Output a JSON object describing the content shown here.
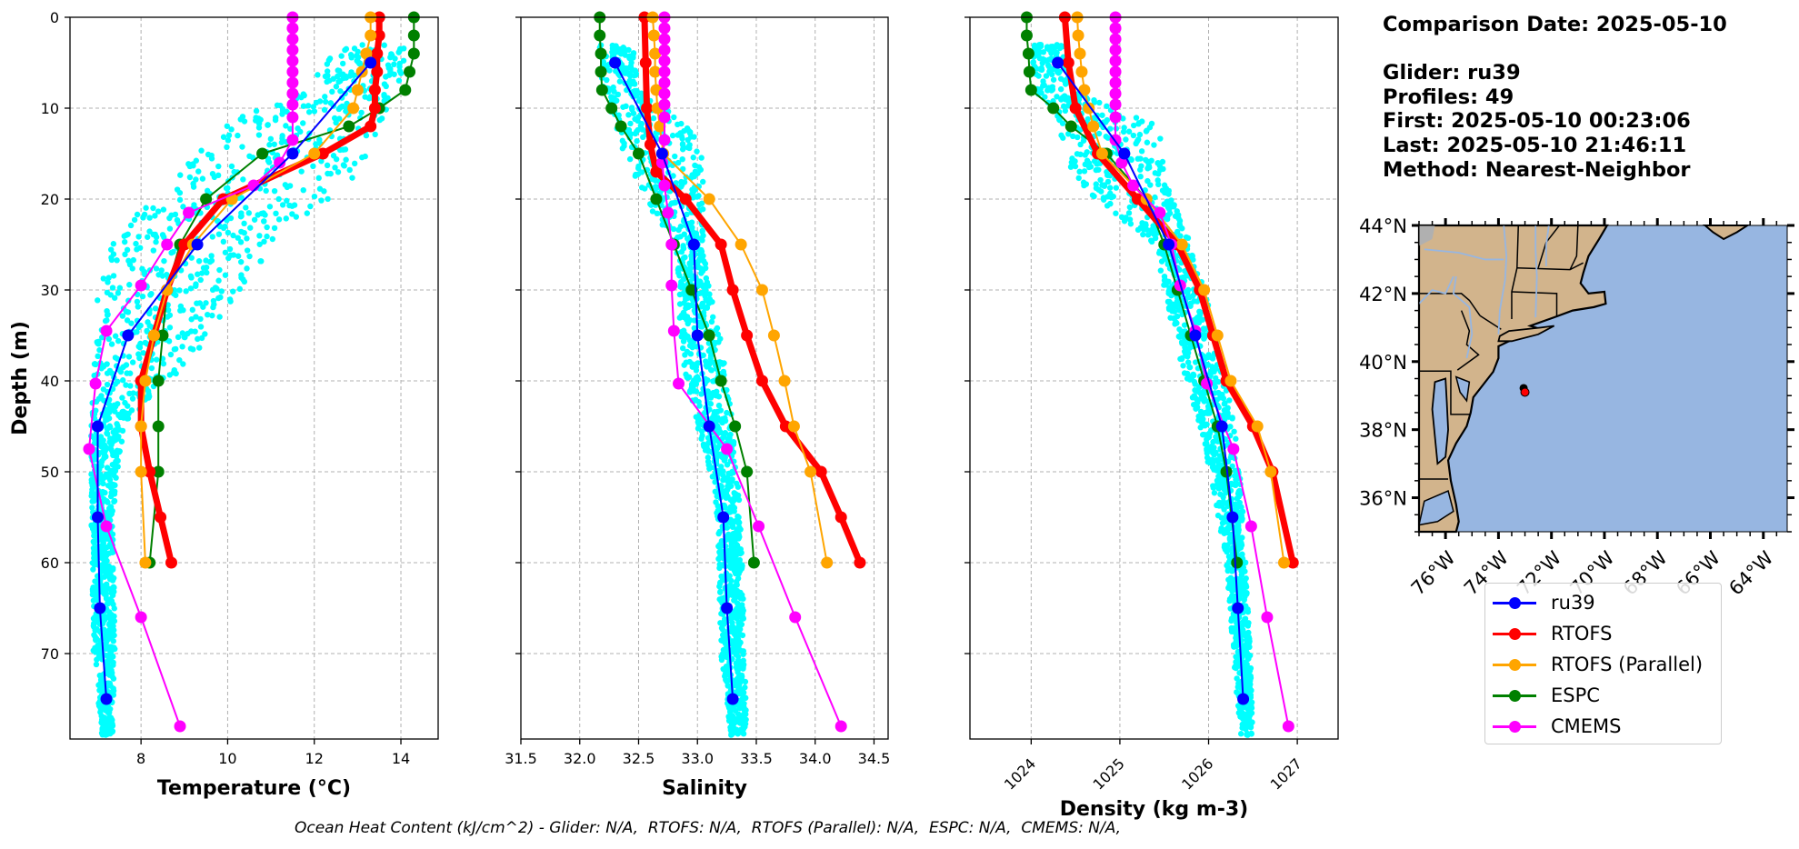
{
  "info": {
    "comparison_date": "Comparison Date: 2025-05-10",
    "glider": "Glider: ru39",
    "profiles": "Profiles: 49",
    "first": "First: 2025-05-10 00:23:06",
    "last": "Last: 2025-05-10 21:46:11",
    "method": "Method: Nearest-Neighbor"
  },
  "footer": "Ocean Heat Content (kJ/cm^2) - Glider: N/A,  RTOFS: N/A,  RTOFS (Parallel): N/A,  ESPC: N/A,  CMEMS: N/A,",
  "legend": [
    {
      "name": "ru39",
      "color": "#0000ff"
    },
    {
      "name": "RTOFS",
      "color": "#ff0000"
    },
    {
      "name": "RTOFS (Parallel)",
      "color": "#ffa500"
    },
    {
      "name": "ESPC",
      "color": "#008000"
    },
    {
      "name": "CMEMS",
      "color": "#ff00ff"
    }
  ],
  "chart_data": [
    {
      "type": "line",
      "title": "",
      "xlabel": "Temperature (°C)",
      "ylabel": "Depth (m)",
      "xlim": [
        6.36,
        14.86
      ],
      "ylim": [
        79.4,
        0
      ],
      "xticks": [
        8,
        10,
        12,
        14
      ],
      "yticks": [
        0,
        10,
        20,
        30,
        40,
        50,
        60,
        70
      ],
      "grid": true,
      "glider_scatter": {
        "name": "ru39 profiles",
        "color": "#00ffff",
        "envelope": [
          {
            "depth": 3,
            "min": 12.6,
            "max": 14.2
          },
          {
            "depth": 8,
            "min": 11.8,
            "max": 13.9
          },
          {
            "depth": 11,
            "min": 10.2,
            "max": 13.6
          },
          {
            "depth": 14,
            "min": 9.5,
            "max": 13.4
          },
          {
            "depth": 18,
            "min": 8.7,
            "max": 13.0
          },
          {
            "depth": 22,
            "min": 7.8,
            "max": 11.7
          },
          {
            "depth": 26,
            "min": 7.2,
            "max": 11.0
          },
          {
            "depth": 30,
            "min": 7.0,
            "max": 10.4
          },
          {
            "depth": 35,
            "min": 6.95,
            "max": 9.6
          },
          {
            "depth": 40,
            "min": 6.9,
            "max": 8.7
          },
          {
            "depth": 45,
            "min": 6.85,
            "max": 7.6
          },
          {
            "depth": 55,
            "min": 6.85,
            "max": 7.35
          },
          {
            "depth": 70,
            "min": 6.9,
            "max": 7.4
          },
          {
            "depth": 79,
            "min": 7.1,
            "max": 7.35
          }
        ]
      },
      "series": [
        {
          "name": "ru39",
          "color": "#0000ff",
          "depth": [
            5,
            15,
            25,
            35,
            45,
            55,
            65,
            75
          ],
          "values": [
            13.3,
            11.5,
            9.3,
            7.7,
            7.0,
            7.0,
            7.05,
            7.2
          ]
        },
        {
          "name": "RTOFS",
          "color": "#ff0000",
          "depth": [
            0,
            2,
            4,
            6,
            8,
            10,
            12,
            15,
            20,
            25,
            30,
            35,
            40,
            45,
            50,
            55,
            60
          ],
          "values": [
            13.5,
            13.5,
            13.45,
            13.45,
            13.4,
            13.4,
            13.3,
            12.2,
            9.9,
            9.0,
            8.6,
            8.3,
            8.0,
            8.0,
            8.2,
            8.45,
            8.7
          ]
        },
        {
          "name": "RTOFS (Parallel)",
          "color": "#ffa500",
          "depth": [
            0,
            2,
            4,
            6,
            8,
            10,
            15,
            20,
            25,
            30,
            35,
            40,
            45,
            50,
            60
          ],
          "values": [
            13.3,
            13.3,
            13.2,
            13.1,
            13.0,
            12.9,
            12.0,
            10.1,
            9.2,
            8.6,
            8.3,
            8.1,
            8.0,
            8.0,
            8.1
          ]
        },
        {
          "name": "ESPC",
          "color": "#008000",
          "depth": [
            0,
            2,
            4,
            6,
            8,
            10,
            12,
            15,
            20,
            25,
            30,
            35,
            40,
            45,
            50,
            60
          ],
          "values": [
            14.3,
            14.3,
            14.3,
            14.2,
            14.1,
            13.5,
            12.8,
            10.8,
            9.5,
            8.9,
            8.6,
            8.5,
            8.4,
            8.4,
            8.4,
            8.2
          ]
        },
        {
          "name": "CMEMS",
          "color": "#ff00ff",
          "depth": [
            0,
            1.2,
            2.4,
            3.6,
            4.8,
            6,
            7.2,
            8.4,
            9.6,
            11,
            13.5,
            16,
            18.5,
            21.5,
            25,
            29.5,
            34.5,
            40.3,
            47.5,
            56,
            66,
            78
          ],
          "values": [
            11.5,
            11.5,
            11.5,
            11.5,
            11.5,
            11.5,
            11.5,
            11.5,
            11.5,
            11.5,
            11.5,
            11.2,
            10.6,
            9.1,
            8.6,
            8.0,
            7.2,
            6.95,
            6.8,
            7.2,
            8.0,
            8.9
          ]
        }
      ]
    },
    {
      "type": "line",
      "title": "",
      "xlabel": "Salinity",
      "ylabel": "",
      "xlim": [
        31.5,
        34.62
      ],
      "ylim": [
        79.4,
        0
      ],
      "xticks": [
        31.5,
        32.0,
        32.5,
        33.0,
        33.5,
        34.0,
        34.5
      ],
      "yticks": [
        0,
        10,
        20,
        30,
        40,
        50,
        60,
        70
      ],
      "grid": true,
      "glider_scatter": {
        "name": "ru39 profiles",
        "color": "#00ffff",
        "envelope": [
          {
            "depth": 3,
            "min": 32.15,
            "max": 32.45
          },
          {
            "depth": 8,
            "min": 32.2,
            "max": 32.5
          },
          {
            "depth": 12,
            "min": 32.3,
            "max": 32.95
          },
          {
            "depth": 16,
            "min": 32.4,
            "max": 33.05
          },
          {
            "depth": 20,
            "min": 32.55,
            "max": 33.05
          },
          {
            "depth": 25,
            "min": 32.8,
            "max": 33.05
          },
          {
            "depth": 30,
            "min": 32.85,
            "max": 33.1
          },
          {
            "depth": 35,
            "min": 32.85,
            "max": 33.2
          },
          {
            "depth": 40,
            "min": 32.9,
            "max": 33.25
          },
          {
            "depth": 45,
            "min": 33.0,
            "max": 33.3
          },
          {
            "depth": 52,
            "min": 33.15,
            "max": 33.35
          },
          {
            "depth": 60,
            "min": 33.18,
            "max": 33.38
          },
          {
            "depth": 70,
            "min": 33.2,
            "max": 33.4
          },
          {
            "depth": 79,
            "min": 33.28,
            "max": 33.42
          }
        ]
      },
      "series": [
        {
          "name": "ru39",
          "color": "#0000ff",
          "depth": [
            5,
            15,
            25,
            35,
            45,
            55,
            65,
            75
          ],
          "values": [
            32.3,
            32.7,
            32.97,
            33.0,
            33.1,
            33.22,
            33.25,
            33.3
          ]
        },
        {
          "name": "RTOFS",
          "color": "#ff0000",
          "depth": [
            0,
            5,
            10,
            14,
            17,
            20,
            25,
            30,
            35,
            40,
            45,
            50,
            55,
            60
          ],
          "values": [
            32.55,
            32.56,
            32.57,
            32.6,
            32.65,
            32.9,
            33.2,
            33.3,
            33.42,
            33.55,
            33.75,
            34.05,
            34.22,
            34.38
          ]
        },
        {
          "name": "RTOFS (Parallel)",
          "color": "#ffa500",
          "depth": [
            0,
            2,
            4,
            6,
            8,
            10,
            12,
            15,
            20,
            25,
            30,
            35,
            40,
            45,
            50,
            60
          ],
          "values": [
            32.62,
            32.63,
            32.64,
            32.64,
            32.65,
            32.66,
            32.68,
            32.71,
            33.1,
            33.37,
            33.55,
            33.65,
            33.74,
            33.82,
            33.96,
            34.1
          ]
        },
        {
          "name": "ESPC",
          "color": "#008000",
          "depth": [
            0,
            2,
            4,
            6,
            8,
            10,
            12,
            15,
            20,
            25,
            30,
            35,
            40,
            45,
            50,
            60
          ],
          "values": [
            32.17,
            32.17,
            32.18,
            32.18,
            32.19,
            32.27,
            32.35,
            32.5,
            32.65,
            32.8,
            32.95,
            33.1,
            33.2,
            33.32,
            33.42,
            33.48
          ]
        },
        {
          "name": "CMEMS",
          "color": "#ff00ff",
          "depth": [
            0,
            1.2,
            2.4,
            3.6,
            4.8,
            6,
            7.2,
            8.4,
            9.6,
            11,
            13.5,
            16,
            18.5,
            21.5,
            25,
            29.5,
            34.5,
            40.3,
            47.5,
            56,
            66,
            78
          ],
          "values": [
            32.72,
            32.72,
            32.72,
            32.72,
            32.72,
            32.72,
            32.72,
            32.72,
            32.72,
            32.72,
            32.72,
            32.7,
            32.72,
            32.75,
            32.78,
            32.78,
            32.8,
            32.84,
            33.25,
            33.52,
            33.83,
            34.22
          ]
        }
      ]
    },
    {
      "type": "line",
      "title": "",
      "xlabel": "Density (kg m-3)",
      "ylabel": "",
      "xlim": [
        1023.31,
        1027.46
      ],
      "ylim": [
        79.4,
        0
      ],
      "xticks": [
        1024,
        1025,
        1026,
        1027
      ],
      "yticks": [
        0,
        10,
        20,
        30,
        40,
        50,
        60,
        70
      ],
      "grid": true,
      "glider_scatter": {
        "name": "ru39 profiles",
        "color": "#00ffff",
        "envelope": [
          {
            "depth": 3,
            "min": 1024.0,
            "max": 1024.35
          },
          {
            "depth": 8,
            "min": 1024.05,
            "max": 1024.45
          },
          {
            "depth": 12,
            "min": 1024.3,
            "max": 1025.45
          },
          {
            "depth": 16,
            "min": 1024.4,
            "max": 1025.5
          },
          {
            "depth": 20,
            "min": 1024.7,
            "max": 1025.6
          },
          {
            "depth": 25,
            "min": 1025.4,
            "max": 1025.8
          },
          {
            "depth": 30,
            "min": 1025.5,
            "max": 1025.95
          },
          {
            "depth": 35,
            "min": 1025.6,
            "max": 1026.1
          },
          {
            "depth": 40,
            "min": 1025.75,
            "max": 1026.2
          },
          {
            "depth": 45,
            "min": 1025.9,
            "max": 1026.3
          },
          {
            "depth": 52,
            "min": 1026.05,
            "max": 1026.37
          },
          {
            "depth": 60,
            "min": 1026.2,
            "max": 1026.42
          },
          {
            "depth": 70,
            "min": 1026.28,
            "max": 1026.47
          },
          {
            "depth": 79,
            "min": 1026.35,
            "max": 1026.5
          }
        ]
      },
      "series": [
        {
          "name": "ru39",
          "color": "#0000ff",
          "depth": [
            5,
            15,
            25,
            35,
            45,
            55,
            65,
            75
          ],
          "values": [
            1024.3,
            1025.05,
            1025.55,
            1025.85,
            1026.15,
            1026.27,
            1026.33,
            1026.39
          ]
        },
        {
          "name": "RTOFS",
          "color": "#ff0000",
          "depth": [
            0,
            5,
            10,
            15,
            20,
            25,
            30,
            35,
            40,
            45,
            50,
            60
          ],
          "values": [
            1024.38,
            1024.42,
            1024.5,
            1024.75,
            1025.2,
            1025.65,
            1025.9,
            1026.05,
            1026.2,
            1026.5,
            1026.72,
            1026.95
          ]
        },
        {
          "name": "RTOFS (Parallel)",
          "color": "#ffa500",
          "depth": [
            0,
            2,
            4,
            6,
            8,
            10,
            12,
            15,
            20,
            25,
            30,
            35,
            40,
            45,
            50,
            60
          ],
          "values": [
            1024.52,
            1024.53,
            1024.55,
            1024.57,
            1024.6,
            1024.65,
            1024.7,
            1024.8,
            1025.3,
            1025.7,
            1025.95,
            1026.1,
            1026.25,
            1026.55,
            1026.7,
            1026.85
          ]
        },
        {
          "name": "ESPC",
          "color": "#008000",
          "depth": [
            0,
            2,
            4,
            6,
            8,
            10,
            12,
            15,
            20,
            25,
            30,
            35,
            40,
            45,
            50,
            60
          ],
          "values": [
            1023.95,
            1023.95,
            1023.97,
            1023.98,
            1024.0,
            1024.25,
            1024.45,
            1024.85,
            1025.3,
            1025.5,
            1025.65,
            1025.8,
            1025.95,
            1026.1,
            1026.2,
            1026.32
          ]
        },
        {
          "name": "CMEMS",
          "color": "#ff00ff",
          "depth": [
            0,
            1.2,
            2.4,
            3.6,
            4.8,
            6,
            7.2,
            8.4,
            9.6,
            11,
            13.5,
            16,
            18.5,
            21.5,
            25,
            29.5,
            34.5,
            40.3,
            47.5,
            56,
            66,
            78
          ],
          "values": [
            1024.95,
            1024.95,
            1024.95,
            1024.95,
            1024.95,
            1024.95,
            1024.95,
            1024.95,
            1024.95,
            1024.95,
            1024.95,
            1025.02,
            1025.15,
            1025.45,
            1025.58,
            1025.68,
            1025.85,
            1025.98,
            1026.28,
            1026.48,
            1026.66,
            1026.9
          ]
        }
      ]
    }
  ],
  "map": {
    "lon_range": [
      -77,
      -63.1
    ],
    "lat_range": [
      35,
      44
    ],
    "lat_ticks": [
      "36°N",
      "38°N",
      "40°N",
      "42°N",
      "44°N"
    ],
    "lat_tick_values": [
      36,
      38,
      40,
      42,
      44
    ],
    "lon_ticks": [
      "76°W",
      "74°W",
      "72°W",
      "70°W",
      "68°W",
      "66°W",
      "64°W"
    ],
    "lon_tick_values": [
      -76,
      -74,
      -72,
      -70,
      -68,
      -66,
      -64
    ],
    "land_color": "#d2b48c",
    "ocean_color": "#97b6e1",
    "glider_position": {
      "lon": -73.0,
      "lat": 39.1,
      "color": "#ff0000"
    }
  }
}
